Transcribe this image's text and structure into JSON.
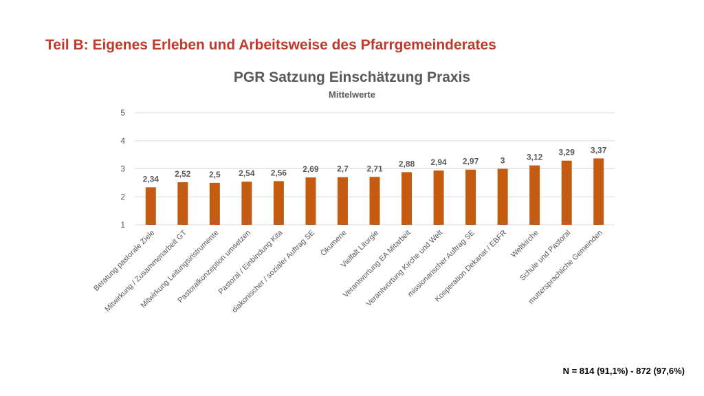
{
  "slide": {
    "title": "Teil B: Eigenes Erleben und Arbeitsweise des Pfarrgemeinderates",
    "footnote": "N = 814 (91,1%) - 872 (97,6%)"
  },
  "colors": {
    "title": "#c0392b",
    "bar": "#c55a11",
    "text": "#595959",
    "grid": "#d9d9d9"
  },
  "chart_data": {
    "type": "bar",
    "title": "PGR Satzung Einschätzung Praxis",
    "subtitle": "Mittelwerte",
    "xlabel": "",
    "ylabel": "",
    "ylim": [
      1,
      5
    ],
    "yticks": [
      "1",
      "2",
      "3",
      "4",
      "5"
    ],
    "grid": true,
    "legend": "none",
    "categories": [
      "Beratung pastorale Ziele",
      "Mitwirkung / Zusammenarbeit GT",
      "Mitwirkung Leitungsinstrumente",
      "Pastoralkonzeption umsetzen",
      "Pastoral / Einbindung Kita",
      "diakonischer / sozialer Auftrag SE",
      "Ökumene",
      "Vielfalt Liturgie",
      "Verantwortung EA Mitarbeit",
      "Verantwortung Kirche und Welt",
      "missionarischer Auftrag SE",
      "Kooperation Dekanat / EBFR",
      "Weltkirche",
      "Schule und Pastoral",
      "muttersprachliche Gemeinden"
    ],
    "values": [
      2.34,
      2.52,
      2.5,
      2.54,
      2.56,
      2.69,
      2.7,
      2.71,
      2.88,
      2.94,
      2.97,
      3,
      3.12,
      3.29,
      3.37
    ],
    "value_labels": [
      "2,34",
      "2,52",
      "2,5",
      "2,54",
      "2,56",
      "2,69",
      "2,7",
      "2,71",
      "2,88",
      "2,94",
      "2,97",
      "3",
      "3,12",
      "3,29",
      "3,37"
    ]
  }
}
